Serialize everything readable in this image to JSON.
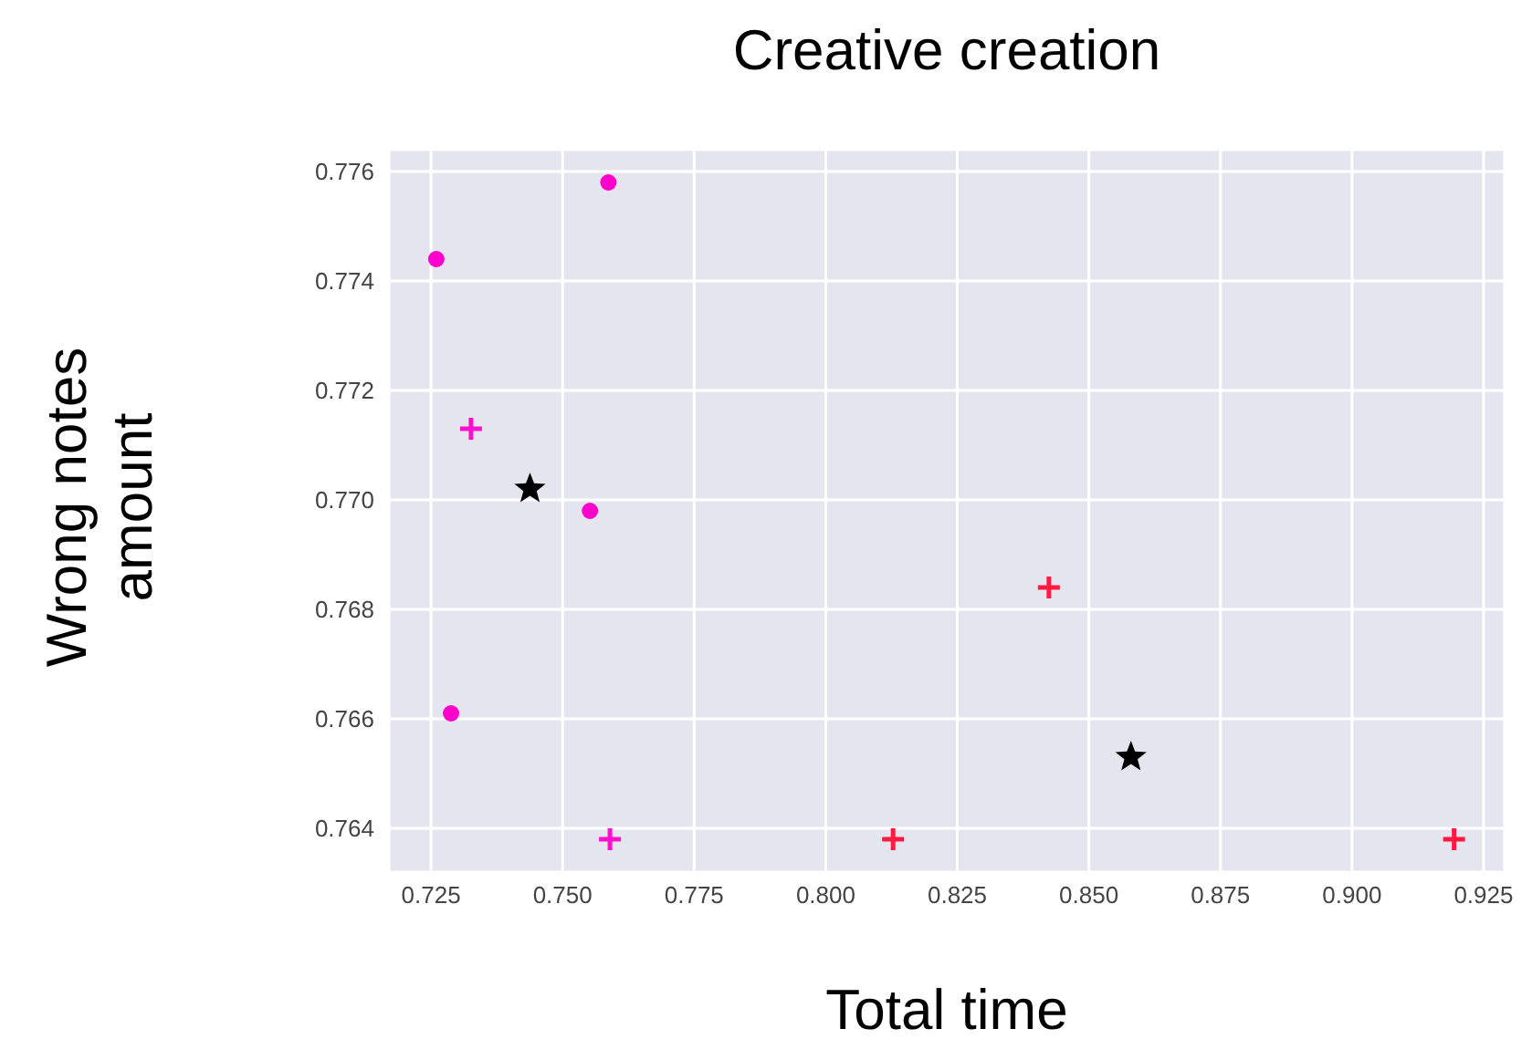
{
  "chart_data": {
    "type": "scatter",
    "title": "Creative creation",
    "xlabel": "Total time",
    "ylabel": "Wrong notes\namount",
    "xlim": [
      0.717,
      0.929
    ],
    "xticks": [
      0.725,
      {
        "value": 0.75,
        "label": "0.750"
      },
      0.775,
      {
        "value": 0.8,
        "label": "0.800"
      },
      0.825,
      {
        "value": 0.85,
        "label": "0.850"
      },
      0.875,
      {
        "value": 0.9,
        "label": "0.900"
      },
      0.925
    ],
    "ylim": [
      0.7632,
      0.7764
    ],
    "yticks": [
      0.764,
      0.766,
      0.768,
      {
        "value": 0.77,
        "label": "0.770"
      },
      0.772,
      0.774,
      0.776
    ],
    "grid": true,
    "legend": false,
    "series": [
      {
        "marker": "circle",
        "color": "#ff00cc",
        "x": [
          0.7587,
          0.726,
          0.7552,
          0.7288
        ],
        "values": [
          0.7758,
          0.7744,
          0.7698,
          0.7661
        ]
      },
      {
        "marker": "cross",
        "color": "#ff10cc",
        "x": [
          0.7326,
          0.759
        ],
        "values": [
          0.7713,
          0.7638
        ]
      },
      {
        "marker": "cross",
        "color": "#ff1a40",
        "x": [
          0.8128,
          0.8424,
          0.9194
        ],
        "values": [
          0.7638,
          0.7684,
          0.7638
        ]
      },
      {
        "marker": "star",
        "color": "#000000",
        "x": [
          0.7438,
          0.858
        ],
        "values": [
          0.7702,
          0.7653
        ]
      }
    ]
  }
}
